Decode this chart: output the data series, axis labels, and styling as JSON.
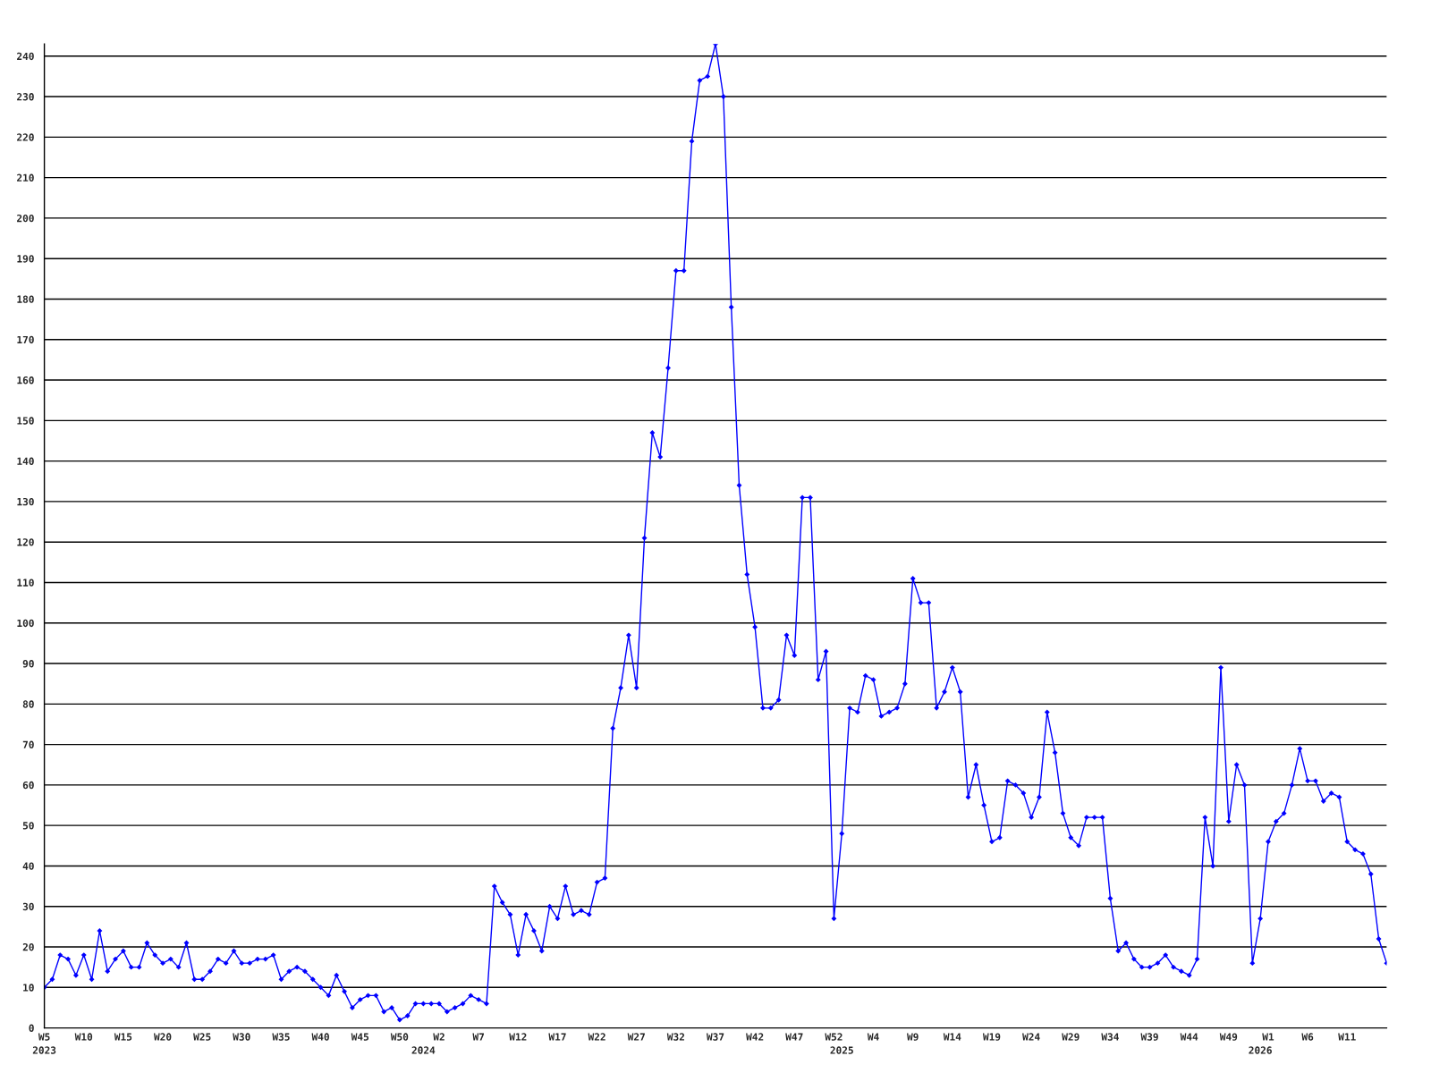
{
  "chart_data": {
    "type": "line",
    "categories": [
      "W5\n2023",
      null,
      null,
      null,
      null,
      "W10",
      null,
      null,
      null,
      null,
      "W15",
      null,
      null,
      null,
      null,
      "W20",
      null,
      null,
      null,
      null,
      "W25",
      null,
      null,
      null,
      null,
      "W30",
      null,
      null,
      null,
      null,
      "W35",
      null,
      null,
      null,
      null,
      "W40",
      null,
      null,
      null,
      null,
      "W45",
      null,
      null,
      null,
      null,
      "W50",
      null,
      null,
      "\n2024",
      null,
      "W2",
      null,
      null,
      null,
      null,
      "W7",
      null,
      null,
      null,
      null,
      "W12",
      null,
      null,
      null,
      null,
      "W17",
      null,
      null,
      null,
      null,
      "W22",
      null,
      null,
      null,
      null,
      "W27",
      null,
      null,
      null,
      null,
      "W32",
      null,
      null,
      null,
      null,
      "W37",
      null,
      null,
      null,
      null,
      "W42",
      null,
      null,
      null,
      null,
      "W47",
      null,
      null,
      null,
      null,
      "W52",
      "\n2025",
      null,
      null,
      null,
      "W4",
      null,
      null,
      null,
      null,
      "W9",
      null,
      null,
      null,
      null,
      "W14",
      null,
      null,
      null,
      null,
      "W19",
      null,
      null,
      null,
      null,
      "W24",
      null,
      null,
      null,
      null,
      "W29",
      null,
      null,
      null,
      null,
      "W34",
      null,
      null,
      null,
      null,
      "W39",
      null,
      null,
      null,
      null,
      "W44",
      null,
      null,
      null,
      null,
      "W49",
      null,
      null,
      null,
      "\n2026",
      "W1",
      null,
      null,
      null,
      null,
      "W6",
      null,
      null,
      null,
      null,
      "W11",
      null,
      null,
      null,
      null,
      null
    ],
    "series": [
      {
        "color": "#0000ff",
        "values": [
          10,
          12,
          18,
          17,
          13,
          18,
          12,
          24,
          14,
          17,
          19,
          15,
          15,
          21,
          18,
          16,
          17,
          15,
          21,
          12,
          12,
          14,
          17,
          16,
          19,
          16,
          16,
          17,
          17,
          18,
          12,
          14,
          15,
          14,
          12,
          10,
          8,
          13,
          9,
          5,
          7,
          8,
          8,
          4,
          5,
          2,
          3,
          6,
          6,
          6,
          6,
          4,
          5,
          6,
          8,
          7,
          6,
          35,
          31,
          28,
          18,
          28,
          24,
          19,
          30,
          27,
          35,
          28,
          29,
          28,
          36,
          37,
          74,
          84,
          97,
          84,
          121,
          147,
          141,
          163,
          187,
          187,
          219,
          234,
          235,
          243,
          230,
          178,
          134,
          112,
          99,
          79,
          79,
          81,
          97,
          92,
          131,
          131,
          86,
          93,
          27,
          48,
          79,
          78,
          87,
          86,
          77,
          78,
          79,
          85,
          111,
          105,
          105,
          79,
          83,
          89,
          83,
          57,
          65,
          55,
          46,
          47,
          61,
          60,
          58,
          52,
          57,
          78,
          68,
          53,
          47,
          45,
          52,
          52,
          52,
          32,
          19,
          21,
          17,
          15,
          15,
          16,
          18,
          15,
          14,
          13,
          17,
          52,
          40,
          89,
          51,
          65,
          60,
          16,
          27,
          46,
          51,
          53,
          60,
          69,
          61,
          61,
          56,
          58,
          57,
          46,
          44,
          43,
          38,
          22,
          16
        ]
      }
    ],
    "ylim": [
      0,
      243
    ],
    "yticks": [
      0,
      10,
      20,
      30,
      40,
      50,
      60,
      70,
      80,
      90,
      100,
      110,
      120,
      130,
      140,
      150,
      160,
      170,
      180,
      190,
      200,
      210,
      220,
      230,
      240
    ],
    "grid": "y",
    "marker": "diamond",
    "line_style": "solid"
  }
}
